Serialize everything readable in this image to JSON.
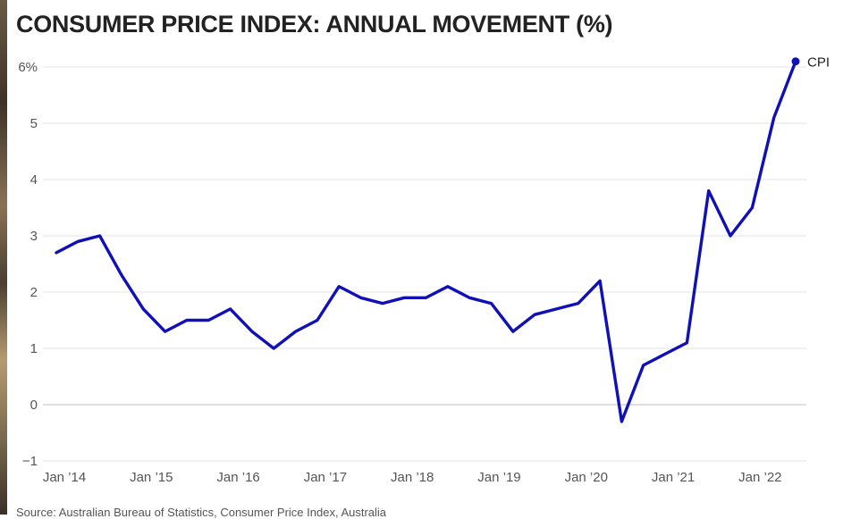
{
  "title": "CONSUMER PRICE INDEX: ANNUAL MOVEMENT (%)",
  "source": "Source: Australian Bureau of Statistics, Consumer Price Index, Australia",
  "chart_data": {
    "type": "line",
    "title": "CONSUMER PRICE INDEX: ANNUAL MOVEMENT (%)",
    "xlabel": "",
    "ylabel": "",
    "ylim": [
      -1,
      6
    ],
    "y_ticks": [
      -1,
      0,
      1,
      2,
      3,
      4,
      5,
      6
    ],
    "y_tick_labels": [
      "−1",
      "0",
      "1",
      "2",
      "3",
      "4",
      "5",
      "6%"
    ],
    "x_tick_labels": [
      "Jan ’14",
      "Jan ’15",
      "Jan ’16",
      "Jan ’17",
      "Jan ’18",
      "Jan ’19",
      "Jan ’20",
      "Jan ’21",
      "Jan ’22"
    ],
    "x_tick_index": [
      0,
      4,
      8,
      12,
      16,
      20,
      24,
      28,
      32
    ],
    "grid": true,
    "color": "#1010b8",
    "series": [
      {
        "name": "CPI",
        "values": [
          2.7,
          2.9,
          3.0,
          2.3,
          1.7,
          1.3,
          1.5,
          1.5,
          1.7,
          1.3,
          1.0,
          1.3,
          1.5,
          2.1,
          1.9,
          1.8,
          1.9,
          1.9,
          2.1,
          1.9,
          1.8,
          1.3,
          1.6,
          1.7,
          1.8,
          2.2,
          -0.3,
          0.7,
          0.9,
          1.1,
          3.8,
          3.0,
          3.5,
          5.1,
          6.1
        ]
      }
    ]
  }
}
